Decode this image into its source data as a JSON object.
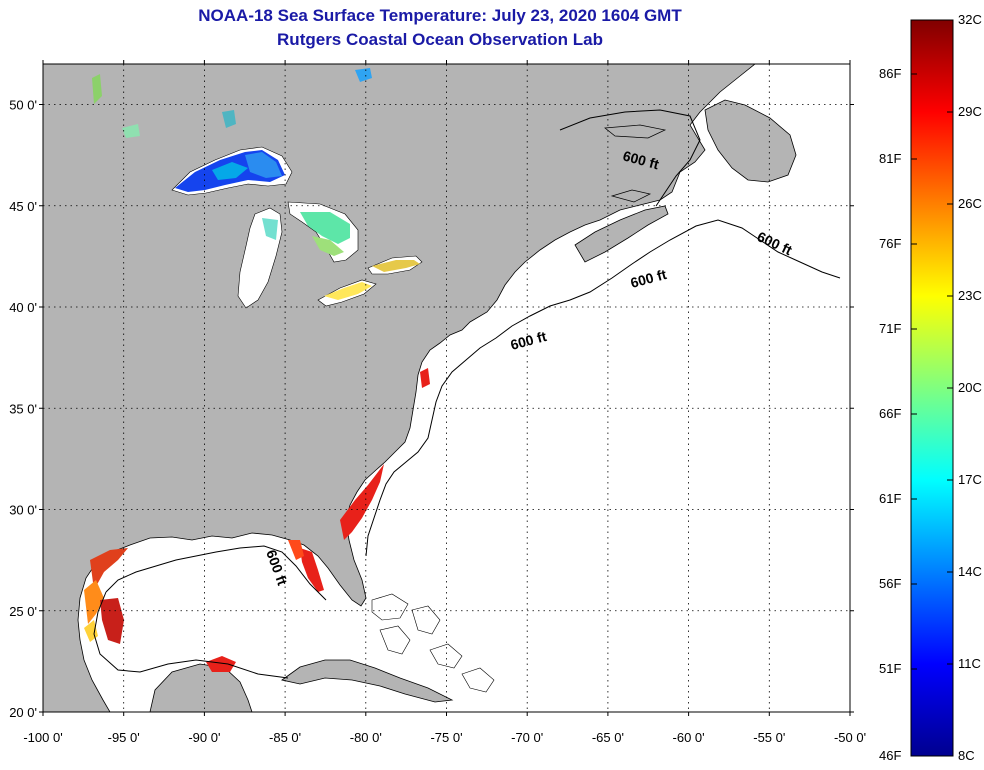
{
  "title": {
    "line1": "NOAA-18 Sea Surface Temperature:  July 23, 2020 1604 GMT",
    "line2": "Rutgers Coastal Ocean Observation Lab"
  },
  "map": {
    "lon_range": [
      -100,
      -50
    ],
    "lat_range": [
      20,
      52
    ],
    "grid": "dotted",
    "land_color": "#b4b4b4",
    "ocean_color": "#ffffff",
    "x_ticks": [
      {
        "lon": -100,
        "label": "-100 0'"
      },
      {
        "lon": -95,
        "label": "-95 0'"
      },
      {
        "lon": -90,
        "label": "-90 0'"
      },
      {
        "lon": -85,
        "label": "-85 0'"
      },
      {
        "lon": -80,
        "label": "-80 0'"
      },
      {
        "lon": -75,
        "label": "-75 0'"
      },
      {
        "lon": -70,
        "label": "-70 0'"
      },
      {
        "lon": -65,
        "label": "-65 0'"
      },
      {
        "lon": -60,
        "label": "-60 0'"
      },
      {
        "lon": -55,
        "label": "-55 0'"
      },
      {
        "lon": -50,
        "label": "-50 0'"
      }
    ],
    "y_ticks": [
      {
        "lat": 50,
        "label": "50 0'"
      },
      {
        "lat": 45,
        "label": "45 0'"
      },
      {
        "lat": 40,
        "label": "40 0'"
      },
      {
        "lat": 35,
        "label": "35 0'"
      },
      {
        "lat": 30,
        "label": "30 0'"
      },
      {
        "lat": 25,
        "label": "25 0'"
      },
      {
        "lat": 20,
        "label": "20 0'"
      }
    ],
    "depth_labels": [
      {
        "text": "600 ft"
      },
      {
        "text": "600 ft"
      },
      {
        "text": "600 ft"
      },
      {
        "text": "600 ft"
      },
      {
        "text": "600 ft"
      }
    ]
  },
  "colorbar": {
    "min_c": 8,
    "max_c": 32,
    "colors": [
      "#00008f",
      "#0000ff",
      "#00ffff",
      "#ffff00",
      "#ff0000",
      "#800000"
    ],
    "fahrenheit_labels": [
      "86F",
      "81F",
      "76F",
      "71F",
      "66F",
      "61F",
      "56F",
      "51F",
      "46F"
    ],
    "celsius_labels": [
      "32C",
      "29C",
      "26C",
      "23C",
      "20C",
      "17C",
      "14C",
      "11C",
      "8C"
    ]
  }
}
